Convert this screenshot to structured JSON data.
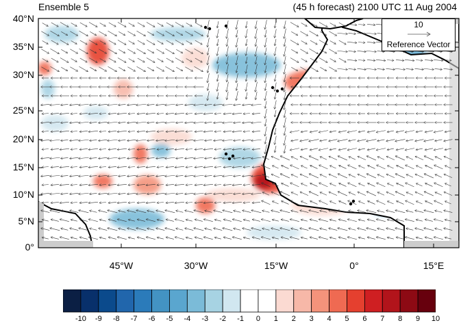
{
  "title_left": "Ensemble 5",
  "title_right": "(45 h forecast) 2100 UTC 11 Aug 2004",
  "map": {
    "lat_labels": [
      "40°N",
      "35°N",
      "30°N",
      "25°N",
      "20°N",
      "15°N",
      "10°N",
      "5°N",
      "0°"
    ],
    "lon_labels": [
      "45°W",
      "30°W",
      "15°W",
      "0°",
      "15°E"
    ],
    "land_fill_color": "#cccccc",
    "coastline_color": "#000000"
  },
  "reference_vector": {
    "magnitude": "10",
    "label": "Reference Vector"
  },
  "colorbar": {
    "labels": [
      "-10",
      "-9",
      "-8",
      "-7",
      "-6",
      "-5",
      "-4",
      "-3",
      "-2",
      "-1",
      "0",
      "1",
      "2",
      "3",
      "4",
      "5",
      "6",
      "7",
      "8",
      "9",
      "10"
    ],
    "colors": [
      "#0b1f44",
      "#08306b",
      "#0b4a8c",
      "#2166ac",
      "#2b7bba",
      "#4393c3",
      "#5aa6cf",
      "#7bbbd8",
      "#a7d3e3",
      "#d1e7f0",
      "#ffffff",
      "#ffffff",
      "#fbdad2",
      "#f7b8a8",
      "#f4937b",
      "#ef6a52",
      "#e5402f",
      "#cf1f22",
      "#b2141b",
      "#8d0a14",
      "#67000d"
    ]
  }
}
